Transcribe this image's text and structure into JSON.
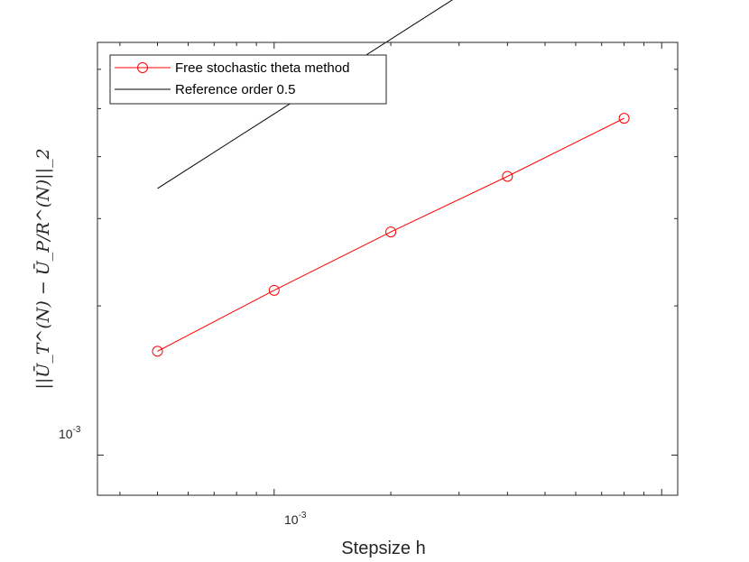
{
  "chart_data": {
    "type": "line",
    "xscale": "log",
    "yscale": "log",
    "xlim": [
      0.00035,
      0.011
    ],
    "ylim": [
      0.00083,
      0.0068
    ],
    "xlabel": "Stepsize h",
    "ylabel": "||Ū_T^(N) − Ū_P/R^(N)||_2",
    "x_tick_label": {
      "base": "10",
      "exp": "-3"
    },
    "y_tick_label": {
      "base": "10",
      "exp": "-3"
    },
    "x_ticks": [
      0.0004,
      0.0005,
      0.0006,
      0.0007,
      0.0008,
      0.0009,
      0.001,
      0.002,
      0.003,
      0.004,
      0.005,
      0.006,
      0.007,
      0.008,
      0.009,
      0.01
    ],
    "y_ticks": [
      0.001,
      0.002,
      0.003,
      0.004,
      0.005,
      0.006
    ],
    "grid": false,
    "legend_position": "top-left",
    "series": [
      {
        "name": "Free stochastic theta method",
        "color": "#ff0000",
        "marker": "circle",
        "x": [
          0.0005,
          0.001,
          0.002,
          0.004,
          0.008
        ],
        "y": [
          0.00162,
          0.00215,
          0.00282,
          0.00365,
          0.00478
        ]
      },
      {
        "name": "Reference order 0.5",
        "color": "#000000",
        "marker": "none",
        "x": [
          0.0005,
          0.008
        ],
        "y": [
          0.00345,
          0.0138
        ]
      }
    ]
  }
}
